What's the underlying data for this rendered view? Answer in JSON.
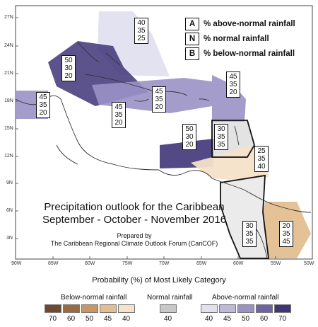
{
  "map": {
    "title_line1": "Precipitation outlook for the Caribbean",
    "title_line2": "September - October - November 2016",
    "prepared_by": "Prepared by",
    "organization": "The Caribbean Regional Climate Outlook Forum (CariCOF)",
    "lat_labels": [
      "27N",
      "24N",
      "21N",
      "18N",
      "15N",
      "12N",
      "9N",
      "6N",
      "3N"
    ],
    "lon_labels": [
      "90W",
      "85W",
      "80W",
      "75W",
      "70W",
      "65W",
      "60W",
      "55W",
      "50W"
    ],
    "key": [
      {
        "letter": "A",
        "text": "% above-normal rainfall"
      },
      {
        "letter": "N",
        "text": "% normal rainfall"
      },
      {
        "letter": "B",
        "text": "% below-normal rainfall"
      }
    ],
    "probability_boxes": [
      {
        "region": "bahamas-north",
        "values": [
          "40",
          "35",
          "25"
        ]
      },
      {
        "region": "cuba-bahamas",
        "values": [
          "50",
          "30",
          "20"
        ]
      },
      {
        "region": "gulf-west",
        "values": [
          "45",
          "35",
          "20"
        ]
      },
      {
        "region": "hispaniola",
        "values": [
          "45",
          "35",
          "20"
        ]
      },
      {
        "region": "jamaica",
        "values": [
          "45",
          "35",
          "20"
        ]
      },
      {
        "region": "leeward",
        "values": [
          "45",
          "35",
          "20"
        ]
      },
      {
        "region": "windward",
        "values": [
          "30",
          "35",
          "35"
        ]
      },
      {
        "region": "central-america",
        "values": [
          "50",
          "30",
          "20"
        ]
      },
      {
        "region": "trinidad",
        "values": [
          "25",
          "35",
          "40"
        ]
      },
      {
        "region": "guyana",
        "values": [
          "30",
          "35",
          "35"
        ]
      },
      {
        "region": "french-guiana",
        "values": [
          "20",
          "35",
          "45"
        ]
      }
    ]
  },
  "legend": {
    "title": "Probability (%) of Most Likely Category",
    "below_label": "Below-normal rainfall",
    "normal_label": "Normal rainfall",
    "above_label": "Above-normal rainfall",
    "below": [
      {
        "value": "70",
        "color": "#6e4a2a"
      },
      {
        "value": "60",
        "color": "#9b6b3f"
      },
      {
        "value": "50",
        "color": "#c9975f"
      },
      {
        "value": "45",
        "color": "#e4be90"
      },
      {
        "value": "40",
        "color": "#f6e2c8"
      }
    ],
    "normal": [
      {
        "value": "40",
        "color": "#c8c8c8"
      }
    ],
    "above": [
      {
        "value": "40",
        "color": "#e2e0f0"
      },
      {
        "value": "45",
        "color": "#bdb8dc"
      },
      {
        "value": "50",
        "color": "#9a92c6"
      },
      {
        "value": "60",
        "color": "#6e63a8"
      },
      {
        "value": "70",
        "color": "#3f3578"
      }
    ]
  }
}
